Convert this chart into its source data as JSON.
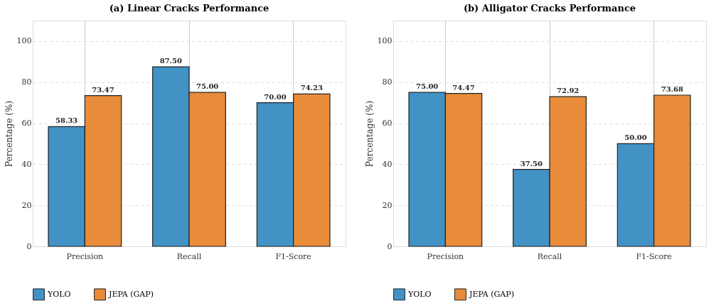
{
  "chart_data": [
    {
      "type": "bar",
      "title": "(a) Linear Cracks Performance",
      "ylabel": "Percentage (%)",
      "categories": [
        "Precision",
        "Recall",
        "F1-Score"
      ],
      "series": [
        {
          "name": "YOLO",
          "color": "#4292c6",
          "values": [
            58.33,
            87.5,
            70.0
          ],
          "value_labels": [
            "58.33",
            "87.50",
            "70.00"
          ]
        },
        {
          "name": "JEPA (GAP)",
          "color": "#e88b3a",
          "values": [
            73.47,
            75.0,
            74.23
          ],
          "value_labels": [
            "73.47",
            "75.00",
            "74.23"
          ]
        }
      ],
      "ylim": [
        0,
        110
      ],
      "yticks": [
        0,
        20,
        40,
        60,
        80,
        100
      ],
      "grid": true,
      "legend": "bottom"
    },
    {
      "type": "bar",
      "title": "(b) Alligator Cracks Performance",
      "ylabel": "Percentage (%)",
      "categories": [
        "Precision",
        "Recall",
        "F1-Score"
      ],
      "series": [
        {
          "name": "YOLO",
          "color": "#4292c6",
          "values": [
            75.0,
            37.5,
            50.0
          ],
          "value_labels": [
            "75.00",
            "37.50",
            "50.00"
          ]
        },
        {
          "name": "JEPA (GAP)",
          "color": "#e88b3a",
          "values": [
            74.47,
            72.92,
            73.68
          ],
          "value_labels": [
            "74.47",
            "72.92",
            "73.68"
          ]
        }
      ],
      "ylim": [
        0,
        110
      ],
      "yticks": [
        0,
        20,
        40,
        60,
        80,
        100
      ],
      "grid": true,
      "legend": "bottom"
    }
  ]
}
